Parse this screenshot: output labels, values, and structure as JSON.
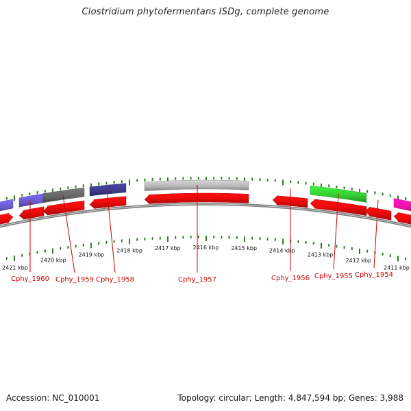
{
  "title": "Clostridium phytofermentans ISDg, complete genome",
  "footer": {
    "accession": "Accession: NC_010001",
    "summary": "Topology: circular; Length: 4,847,594 bp; Genes: 3,988"
  },
  "colors": {
    "backbone": "#8a8a8a",
    "tick": "#2e7d1f",
    "label": "#cc0000",
    "gene_red": "#ee0b0b",
    "gene_blue": "#6a5acd",
    "gene_gray": "#666666",
    "gene_navy": "#3d3a8c",
    "gene_lightgray": "#b4b4b4",
    "gene_green": "#33cc33",
    "gene_magenta": "#ee11aa"
  },
  "scale_labels": [
    "2421 kbp",
    "2420 kbp",
    "2419 kbp",
    "2418 kbp",
    "2417 kbp",
    "2416 kbp",
    "2415 kbp",
    "2414 kbp",
    "2413 kbp",
    "2412 kbp",
    "2411 kbp"
  ],
  "genes": [
    {
      "label": "",
      "color": "gene_red",
      "lane": "upper",
      "start": -10,
      "end": 19,
      "direction": "right"
    },
    {
      "label": "Cphy_1960",
      "color": "gene_red",
      "lane": "upper",
      "start": 28,
      "end": 64,
      "direction": "left"
    },
    {
      "label": "Cphy_1959",
      "color": "gene_red",
      "lane": "upper",
      "start": 63,
      "end": 123,
      "direction": "left"
    },
    {
      "label": "Cphy_1958",
      "color": "gene_red",
      "lane": "upper",
      "start": 131,
      "end": 184,
      "direction": "left"
    },
    {
      "label": "Cphy_1957",
      "color": "gene_red",
      "lane": "upper",
      "start": 211,
      "end": 363,
      "direction": "left"
    },
    {
      "label": "Cphy_1956",
      "color": "gene_red",
      "lane": "upper",
      "start": 398,
      "end": 449,
      "direction": "left"
    },
    {
      "label": "Cphy_1955",
      "color": "gene_red",
      "lane": "upper",
      "start": 453,
      "end": 535,
      "direction": "left"
    },
    {
      "label": "Cphy_1954",
      "color": "gene_red",
      "lane": "upper",
      "start": 533,
      "end": 571,
      "direction": "left"
    },
    {
      "label": "",
      "color": "gene_red",
      "lane": "upper",
      "start": 575,
      "end": 610,
      "direction": "left"
    }
  ],
  "features": [
    {
      "color": "gene_blue",
      "start": -10,
      "end": 19
    },
    {
      "color": "gene_blue",
      "start": 28,
      "end": 64
    },
    {
      "color": "gene_gray",
      "start": 63,
      "end": 123
    },
    {
      "color": "gene_navy",
      "start": 131,
      "end": 184
    },
    {
      "color": "gene_lightgray",
      "start": 211,
      "end": 363
    },
    {
      "color": "gene_green",
      "start": 453,
      "end": 535
    },
    {
      "color": "gene_magenta",
      "start": 575,
      "end": 610
    }
  ]
}
